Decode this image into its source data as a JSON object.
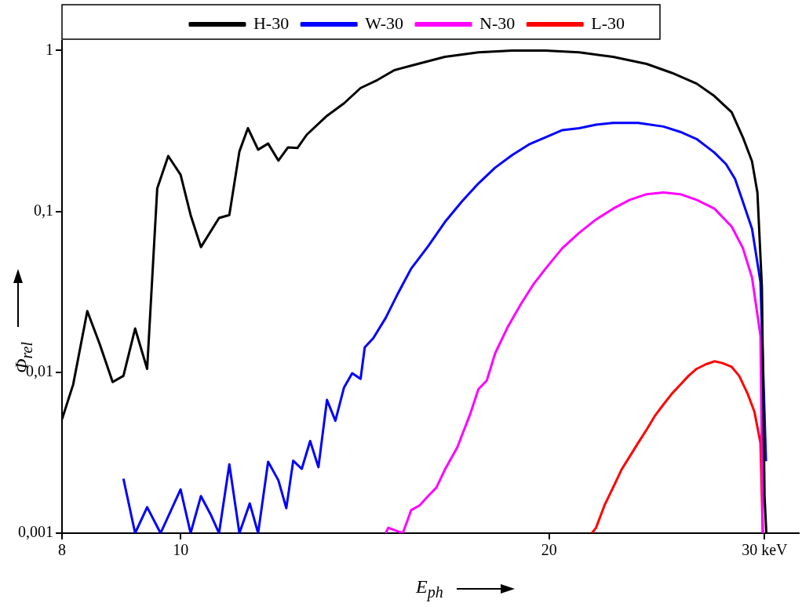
{
  "chart_data": {
    "type": "line",
    "xlabel": "E$_{ph}$",
    "ylabel": "Φ$_{rel}$",
    "log": "xy",
    "legend": "top",
    "marker": "none",
    "line_style": "solid",
    "xlim": [
      8,
      32
    ],
    "xticks": [
      8,
      10,
      20,
      {
        "value": 30,
        "label": "30 keV"
      }
    ],
    "ylim": [
      0.001,
      1.15
    ],
    "yticks": [
      {
        "value": 0.001,
        "label": "0,001"
      },
      {
        "value": 0.01,
        "label": "0,01"
      },
      {
        "value": 0.1,
        "label": "0,1"
      },
      1
    ],
    "series": [
      {
        "name": "H-30",
        "color": "#000000",
        "x": [
          8.0,
          8.17,
          8.39,
          8.59,
          8.8,
          8.98,
          9.18,
          9.39,
          9.57,
          9.77,
          10,
          10.19,
          10.39,
          10.75,
          10.96,
          11.17,
          11.35,
          11.57,
          11.79,
          12.02,
          12.24,
          12.46,
          12.68,
          13.17,
          13.6,
          14.03,
          14.48,
          14.95,
          15.43,
          16.44,
          17.51,
          18.66,
          19.87,
          21.17,
          22.56,
          24.03,
          25.2,
          26.4,
          27.3,
          28.2,
          28.8,
          29.3,
          29.6,
          29.85,
          30.0,
          30.1
        ],
        "values": [
          0.0051,
          0.0084,
          0.024,
          0.0149,
          0.0087,
          0.0095,
          0.0187,
          0.0105,
          0.139,
          0.221,
          0.169,
          0.095,
          0.06,
          0.091,
          0.095,
          0.236,
          0.329,
          0.242,
          0.264,
          0.207,
          0.25,
          0.248,
          0.3,
          0.393,
          0.47,
          0.585,
          0.656,
          0.755,
          0.805,
          0.914,
          0.975,
          1.0,
          1.0,
          0.975,
          0.914,
          0.826,
          0.726,
          0.623,
          0.521,
          0.414,
          0.289,
          0.205,
          0.131,
          0.034,
          0.0017,
          0.001
        ]
      },
      {
        "name": "W-30",
        "color": "#0000ff",
        "x": [
          8.98,
          9.18,
          9.39,
          9.63,
          10,
          10.19,
          10.39,
          10.58,
          10.75,
          10.96,
          11.17,
          11.39,
          11.57,
          11.79,
          12.02,
          12.2,
          12.36,
          12.56,
          12.76,
          12.96,
          13.17,
          13.38,
          13.6,
          13.81,
          14.03,
          14.14,
          14.37,
          14.71,
          15.06,
          15.43,
          15.93,
          16.44,
          16.97,
          17.51,
          18.07,
          18.66,
          19.26,
          19.87,
          20.51,
          21.17,
          21.85,
          22.56,
          23.65,
          24.8,
          25.6,
          26.4,
          27.3,
          27.9,
          28.38,
          28.8,
          29.3,
          29.77,
          30.08
        ],
        "values": [
          0.00218,
          0.001,
          0.00145,
          0.001,
          0.00187,
          0.001,
          0.0017,
          0.00131,
          0.001,
          0.00268,
          0.001,
          0.00153,
          0.001,
          0.00278,
          0.00213,
          0.00143,
          0.00282,
          0.00251,
          0.00374,
          0.00257,
          0.00673,
          0.005,
          0.00805,
          0.00987,
          0.0091,
          0.0143,
          0.0163,
          0.0218,
          0.0312,
          0.0441,
          0.0607,
          0.0858,
          0.115,
          0.149,
          0.187,
          0.224,
          0.261,
          0.289,
          0.32,
          0.329,
          0.346,
          0.355,
          0.355,
          0.337,
          0.312,
          0.282,
          0.232,
          0.197,
          0.159,
          0.115,
          0.078,
          0.0364,
          0.0028
        ]
      },
      {
        "name": "N-30",
        "color": "#ff00ff",
        "x": [
          14.71,
          14.78,
          15.19,
          15.43,
          15.68,
          15.93,
          16.18,
          16.44,
          16.83,
          17.24,
          17.51,
          17.79,
          18.07,
          18.51,
          18.96,
          19.41,
          19.87,
          20.51,
          21.17,
          21.85,
          22.56,
          23.28,
          24.03,
          24.8,
          25.6,
          26.4,
          27.3,
          28.2,
          28.8,
          29.3,
          29.77,
          29.9
        ],
        "values": [
          0.001,
          0.00108,
          0.001,
          0.00139,
          0.00149,
          0.0017,
          0.00192,
          0.00248,
          0.00342,
          0.00548,
          0.00784,
          0.0089,
          0.0131,
          0.0192,
          0.0264,
          0.035,
          0.0441,
          0.0592,
          0.0736,
          0.0891,
          0.104,
          0.118,
          0.128,
          0.131,
          0.128,
          0.118,
          0.104,
          0.0805,
          0.0592,
          0.0388,
          0.0169,
          0.001
        ]
      },
      {
        "name": "L-30",
        "color": "#ff0000",
        "x": [
          21.68,
          21.85,
          22.2,
          22.56,
          22.92,
          23.28,
          23.65,
          24.03,
          24.4,
          24.8,
          25.2,
          25.6,
          26.0,
          26.4,
          26.85,
          27.3,
          27.72,
          28.2,
          28.6,
          29.06,
          29.43,
          29.77,
          29.9
        ],
        "values": [
          0.001,
          0.00108,
          0.00149,
          0.00192,
          0.00248,
          0.003,
          0.00364,
          0.0044,
          0.00534,
          0.0063,
          0.00736,
          0.00836,
          0.0095,
          0.0105,
          0.0112,
          0.0117,
          0.0114,
          0.0108,
          0.0095,
          0.00736,
          0.0057,
          0.00364,
          0.001
        ]
      }
    ]
  }
}
